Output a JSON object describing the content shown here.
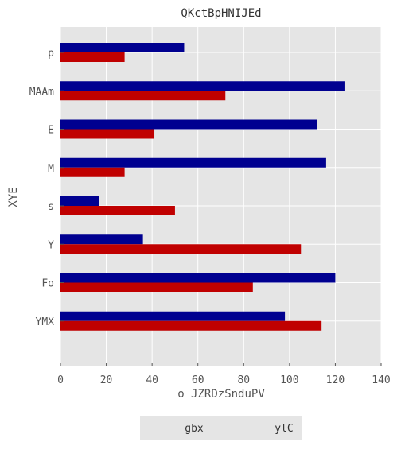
{
  "chart_data": {
    "type": "bar",
    "orientation": "horizontal",
    "title": "QKctBpHNIJEd",
    "xlabel": "o JZRDzSnduPV",
    "ylabel": "XYE",
    "categories": [
      "p",
      "MAAm",
      "E",
      "M",
      "s",
      "Y",
      "Fo",
      "YMX"
    ],
    "series": [
      {
        "name": "gbx",
        "color": "#000090",
        "values": [
          54,
          124,
          112,
          116,
          17,
          36,
          120,
          98
        ]
      },
      {
        "name": "ylC",
        "color": "#c00000",
        "values": [
          28,
          72,
          41,
          28,
          50,
          105,
          84,
          114
        ]
      }
    ],
    "xlim": [
      0,
      140
    ],
    "xticks": [
      0,
      20,
      40,
      60,
      80,
      100,
      120,
      140
    ],
    "grid": true,
    "legend": "bottom-center"
  }
}
